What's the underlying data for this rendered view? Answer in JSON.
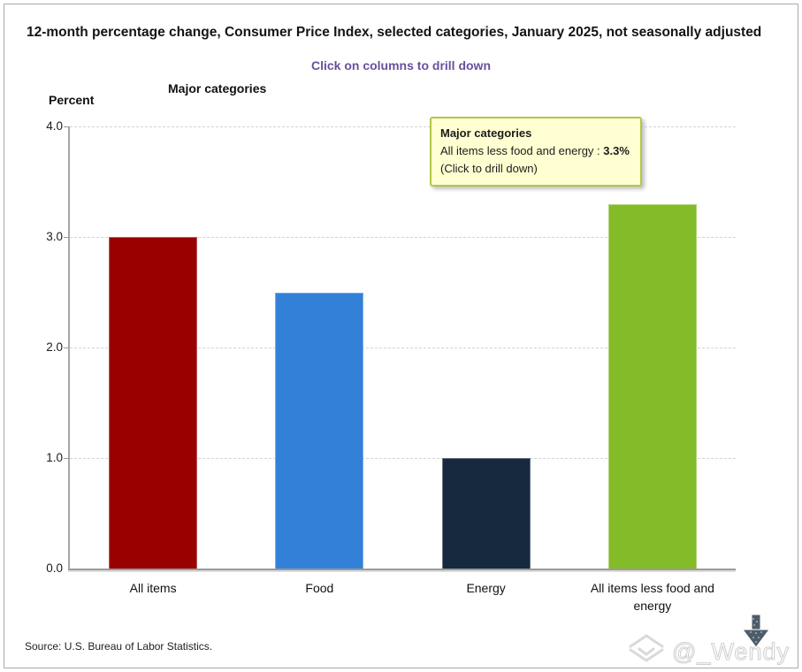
{
  "page": {
    "title": "12-month percentage change, Consumer Price Index, selected categories, January 2025, not seasonally adjusted",
    "subtitle": "Click on columns to drill down",
    "source": "Source: U.S. Bureau of Labor Statistics.",
    "watermark": "@_Wendy"
  },
  "chart_data": {
    "type": "bar",
    "title": "Major categories",
    "ylabel": "Percent",
    "categories": [
      "All items",
      "Food",
      "Energy",
      "All items less food and energy"
    ],
    "values": [
      3.0,
      2.5,
      1.0,
      3.3
    ],
    "colors": [
      "#990000",
      "#3380d9",
      "#16293e",
      "#84bb28"
    ],
    "ylim": [
      0,
      4
    ],
    "yticks": [
      "0.0",
      "1.0",
      "2.0",
      "3.0",
      "4.0"
    ],
    "grid": "horizontal-dashed",
    "legend": "none"
  },
  "tooltip": {
    "title": "Major categories",
    "label": "All items less food and energy : ",
    "value": "3.3%",
    "note": "(Click to drill down)"
  }
}
